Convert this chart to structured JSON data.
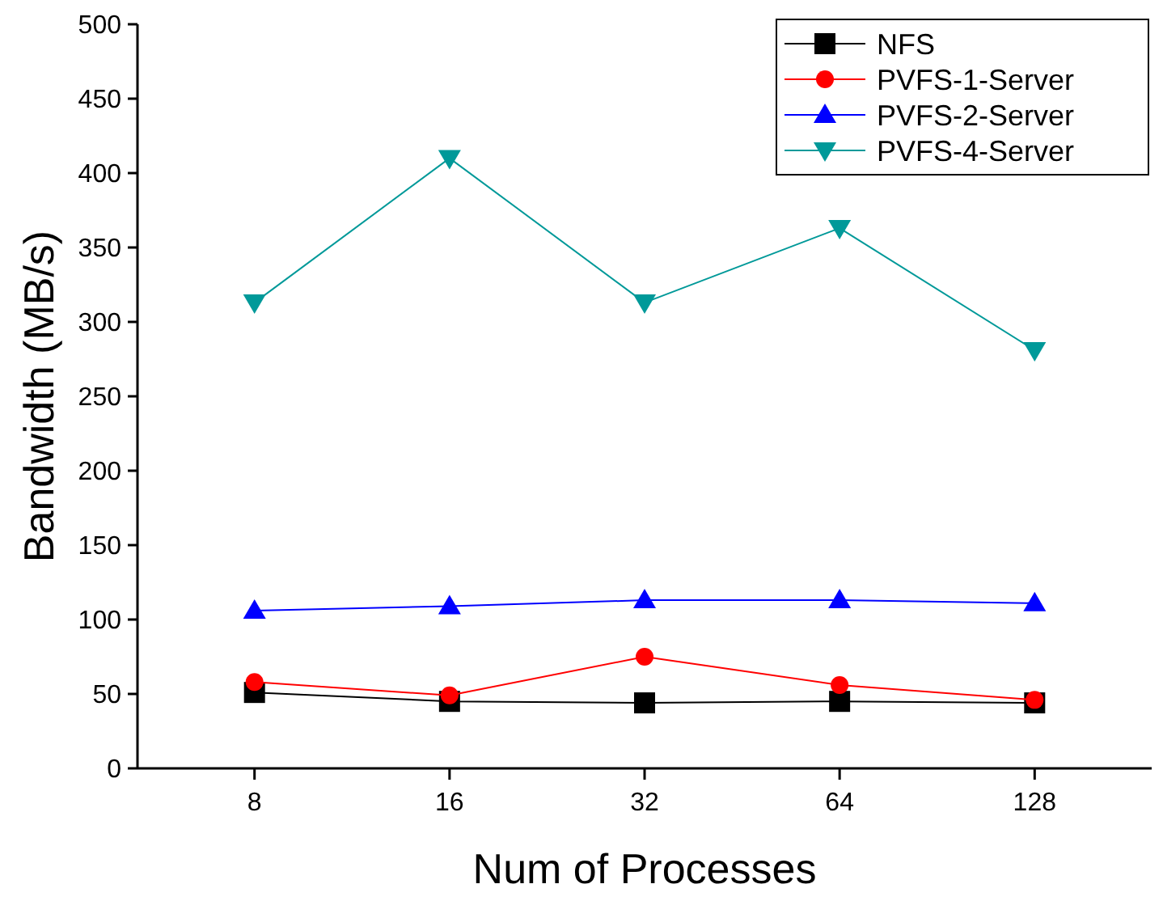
{
  "chart_data": {
    "type": "line",
    "xlabel": "Num of Processes",
    "ylabel": "Bandwidth (MB/s)",
    "categories": [
      "8",
      "16",
      "32",
      "64",
      "128"
    ],
    "series": [
      {
        "name": "NFS",
        "color": "#000000",
        "marker": "square",
        "values": [
          51,
          45,
          44,
          45,
          44
        ]
      },
      {
        "name": "PVFS-1-Server",
        "color": "#ff0000",
        "marker": "circle",
        "values": [
          58,
          49,
          75,
          56,
          46
        ]
      },
      {
        "name": "PVFS-2-Server",
        "color": "#0000ff",
        "marker": "triangle",
        "values": [
          106,
          109,
          113,
          113,
          111
        ]
      },
      {
        "name": "PVFS-4-Server",
        "color": "#009999",
        "marker": "triangle-down",
        "values": [
          313,
          410,
          313,
          363,
          281
        ]
      }
    ],
    "ylim": [
      0,
      500
    ],
    "yticks": [
      0,
      50,
      100,
      150,
      200,
      250,
      300,
      350,
      400,
      450,
      500
    ],
    "grid": false,
    "legend": "top right",
    "line_style": "solid"
  }
}
